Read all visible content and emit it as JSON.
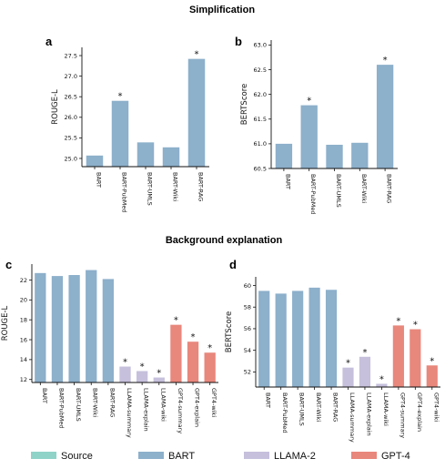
{
  "titles": {
    "top": "Simplification",
    "bottom": "Background explanation"
  },
  "colors": {
    "Source": "#8fd3c8",
    "BART": "#8db0cb",
    "LLAMA-2": "#c6c0dc",
    "GPT-4": "#e8877c"
  },
  "legend": {
    "items": [
      {
        "name": "Source",
        "color": "#8fd3c8"
      },
      {
        "name": "BART",
        "color": "#8db0cb"
      },
      {
        "name": "LLAMA-2",
        "color": "#c6c0dc"
      },
      {
        "name": "GPT-4",
        "color": "#e8877c"
      }
    ]
  },
  "chart_data": [
    {
      "panel": "a",
      "type": "bar",
      "ylabel": "ROUGE-L",
      "categories": [
        "BART",
        "BART-PubMed",
        "BART-UMLS",
        "BART-Wiki",
        "BART-RAG"
      ],
      "values": [
        25.07,
        26.4,
        25.39,
        25.27,
        27.42
      ],
      "groups": [
        "BART",
        "BART",
        "BART",
        "BART",
        "BART"
      ],
      "significant": [
        false,
        true,
        false,
        false,
        true
      ],
      "ylim": [
        24.8,
        27.7
      ],
      "yticks": [
        25.0,
        25.5,
        26.0,
        26.5,
        27.0,
        27.5
      ],
      "ytick_labels": [
        "25.0",
        "25.5",
        "26.0",
        "26.5",
        "27.0",
        "27.5"
      ]
    },
    {
      "panel": "b",
      "type": "bar",
      "ylabel": "BERTScore",
      "categories": [
        "BART",
        "BART-PubMed",
        "BART-UMLS",
        "BART-Wiki",
        "BART-RAG"
      ],
      "values": [
        61.0,
        61.78,
        60.98,
        61.02,
        62.6
      ],
      "groups": [
        "BART",
        "BART",
        "BART",
        "BART",
        "BART"
      ],
      "significant": [
        false,
        true,
        false,
        false,
        true
      ],
      "ylim": [
        60.5,
        63.1
      ],
      "yticks": [
        60.5,
        61.0,
        61.5,
        62.0,
        62.5,
        63.0
      ],
      "ytick_labels": [
        "60.5",
        "61.0",
        "61.5",
        "62.0",
        "62.5",
        "63.0"
      ]
    },
    {
      "panel": "c",
      "type": "bar",
      "ylabel": "ROUGE-L",
      "categories": [
        "BART",
        "BART-PubMed",
        "BART-UMLS",
        "BART-Wiki",
        "BART-RAG",
        "LLAMA-summary",
        "LLAMA-explain",
        "LLAMA-wiki",
        "GPT4-summary",
        "GPT4-explain",
        "GPT4-wiki"
      ],
      "values": [
        22.7,
        22.4,
        22.5,
        23.0,
        22.1,
        13.3,
        12.85,
        12.2,
        17.5,
        15.8,
        14.7
      ],
      "groups": [
        "BART",
        "BART",
        "BART",
        "BART",
        "BART",
        "LLAMA-2",
        "LLAMA-2",
        "LLAMA-2",
        "GPT-4",
        "GPT-4",
        "GPT-4"
      ],
      "significant": [
        false,
        false,
        false,
        false,
        false,
        true,
        true,
        true,
        true,
        true,
        true
      ],
      "ylim": [
        11.7,
        23.6
      ],
      "yticks": [
        12,
        14,
        16,
        18,
        20,
        22
      ],
      "ytick_labels": [
        "12",
        "14",
        "16",
        "18",
        "20",
        "22"
      ]
    },
    {
      "panel": "d",
      "type": "bar",
      "ylabel": "BERTScore",
      "categories": [
        "BART",
        "BART-PubMed",
        "BART-UMLS",
        "BART-Wiki",
        "BART-RAG",
        "LLAMA-summary",
        "LLAMA-explain",
        "LLAMA-wiki",
        "GPT4-summary",
        "GPT4-explain",
        "GPT4-wiki"
      ],
      "values": [
        59.5,
        59.25,
        59.5,
        59.8,
        59.6,
        52.4,
        53.4,
        50.9,
        56.3,
        55.95,
        52.6
      ],
      "groups": [
        "BART",
        "BART",
        "BART",
        "BART",
        "BART",
        "LLAMA-2",
        "LLAMA-2",
        "LLAMA-2",
        "GPT-4",
        "GPT-4",
        "GPT-4"
      ],
      "significant": [
        false,
        false,
        false,
        false,
        false,
        true,
        true,
        true,
        true,
        true,
        true
      ],
      "ylim": [
        50.6,
        60.8
      ],
      "yticks": [
        52,
        54,
        56,
        58,
        60
      ],
      "ytick_labels": [
        "52",
        "54",
        "56",
        "58",
        "60"
      ]
    }
  ],
  "significance_marker": "*"
}
